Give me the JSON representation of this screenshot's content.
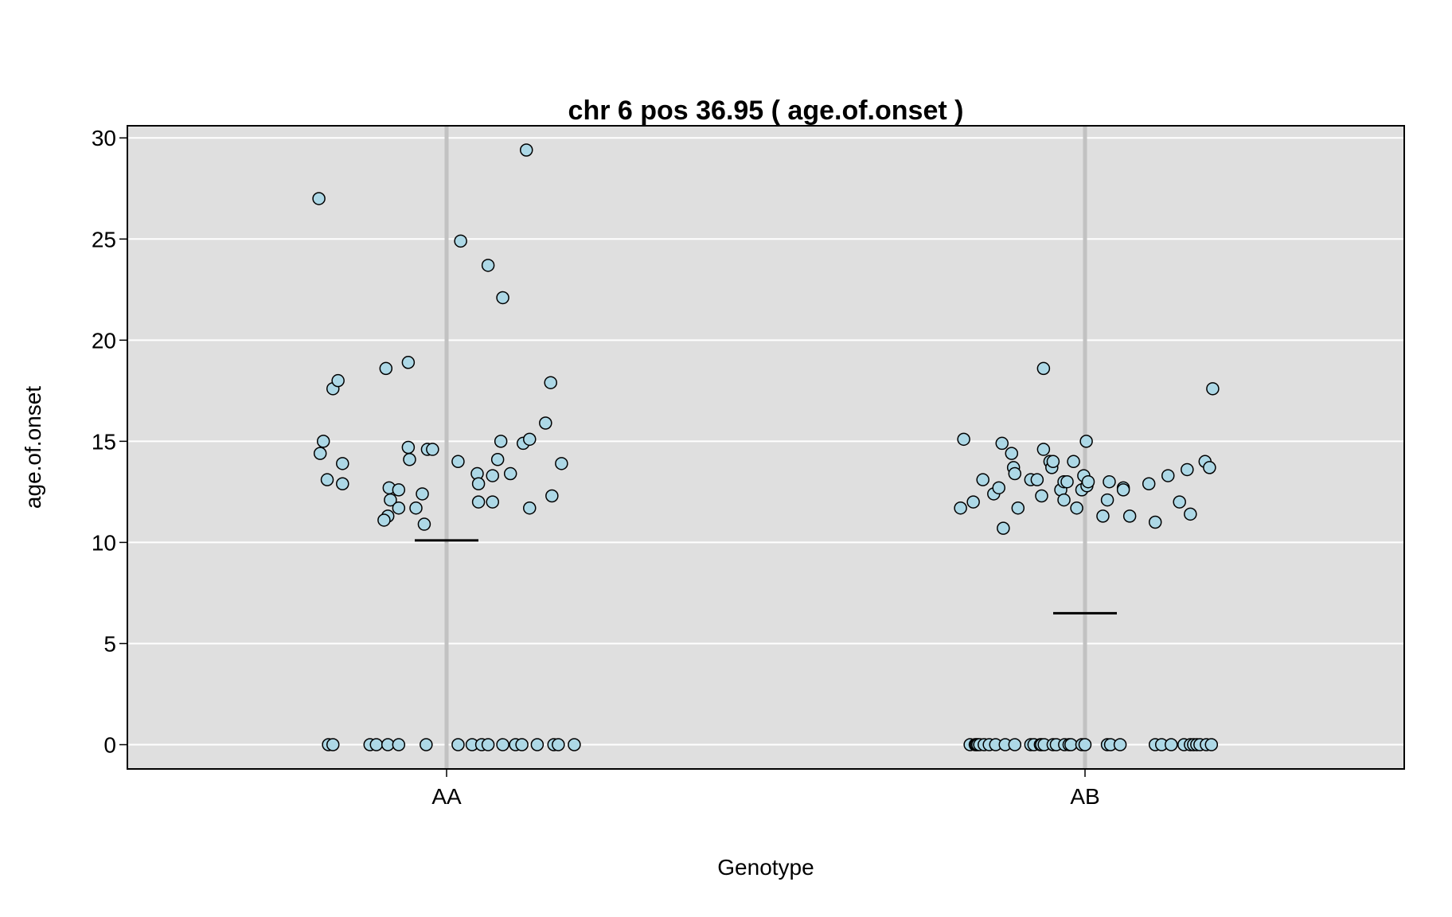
{
  "chart_data": {
    "type": "scatter",
    "title": "chr 6 pos 36.95 ( age.of.onset )",
    "xlabel": "Genotype",
    "ylabel": "age.of.onset",
    "categories": [
      "AA",
      "AB"
    ],
    "ylim": [
      -1.2,
      30.6
    ],
    "yticks": [
      0,
      5,
      10,
      15,
      20,
      25,
      30
    ],
    "grid": true,
    "legend": "none",
    "colors": {
      "panel": "#dfdfdf",
      "gridline": "#ffffff",
      "category_line": "#c2c2c2",
      "point_fill": "#add8e6",
      "point_stroke": "#000000",
      "mean_line": "#000000"
    },
    "series": [
      {
        "category": "AA",
        "mean": 10.1,
        "points": [
          [
            -0.2,
            27.0
          ],
          [
            -0.193,
            15.0
          ],
          [
            -0.198,
            14.4
          ],
          [
            -0.187,
            13.1
          ],
          [
            -0.178,
            17.6
          ],
          [
            -0.17,
            18.0
          ],
          [
            -0.163,
            13.9
          ],
          [
            -0.163,
            12.9
          ],
          [
            -0.095,
            18.6
          ],
          [
            -0.06,
            18.9
          ],
          [
            -0.06,
            14.7
          ],
          [
            -0.058,
            14.1
          ],
          [
            -0.09,
            12.7
          ],
          [
            -0.075,
            12.6
          ],
          [
            -0.088,
            12.1
          ],
          [
            -0.038,
            12.4
          ],
          [
            -0.048,
            11.7
          ],
          [
            -0.075,
            11.7
          ],
          [
            -0.092,
            11.3
          ],
          [
            -0.098,
            11.1
          ],
          [
            -0.035,
            10.9
          ],
          [
            -0.03,
            14.6
          ],
          [
            -0.022,
            14.6
          ],
          [
            0.022,
            24.9
          ],
          [
            0.065,
            23.7
          ],
          [
            0.088,
            22.1
          ],
          [
            0.125,
            29.4
          ],
          [
            0.018,
            14.0
          ],
          [
            0.048,
            13.4
          ],
          [
            0.05,
            12.9
          ],
          [
            0.05,
            12.0
          ],
          [
            0.072,
            12.0
          ],
          [
            0.072,
            13.3
          ],
          [
            0.08,
            14.1
          ],
          [
            0.085,
            15.0
          ],
          [
            0.1,
            13.4
          ],
          [
            0.12,
            14.9
          ],
          [
            0.13,
            15.1
          ],
          [
            0.13,
            11.7
          ],
          [
            0.155,
            15.9
          ],
          [
            0.163,
            17.9
          ],
          [
            0.165,
            12.3
          ],
          [
            0.18,
            13.9
          ],
          [
            -0.185,
            0
          ],
          [
            -0.178,
            0
          ],
          [
            -0.12,
            0
          ],
          [
            -0.11,
            0
          ],
          [
            -0.092,
            0
          ],
          [
            -0.075,
            0
          ],
          [
            -0.032,
            0
          ],
          [
            0.018,
            0
          ],
          [
            0.04,
            0
          ],
          [
            0.055,
            0
          ],
          [
            0.065,
            0
          ],
          [
            0.088,
            0
          ],
          [
            0.108,
            0
          ],
          [
            0.118,
            0
          ],
          [
            0.142,
            0
          ],
          [
            0.168,
            0
          ],
          [
            0.175,
            0
          ],
          [
            0.2,
            0
          ]
        ]
      },
      {
        "category": "AB",
        "mean": 6.5,
        "points": [
          [
            -0.195,
            11.7
          ],
          [
            -0.19,
            15.1
          ],
          [
            -0.175,
            12.0
          ],
          [
            -0.16,
            13.1
          ],
          [
            -0.143,
            12.4
          ],
          [
            -0.135,
            12.7
          ],
          [
            -0.13,
            14.9
          ],
          [
            -0.128,
            10.7
          ],
          [
            -0.115,
            14.4
          ],
          [
            -0.112,
            13.7
          ],
          [
            -0.11,
            13.4
          ],
          [
            -0.105,
            11.7
          ],
          [
            -0.085,
            13.1
          ],
          [
            -0.075,
            13.1
          ],
          [
            -0.068,
            12.3
          ],
          [
            -0.065,
            18.6
          ],
          [
            -0.065,
            14.6
          ],
          [
            -0.055,
            14.0
          ],
          [
            -0.052,
            13.7
          ],
          [
            -0.05,
            14.0
          ],
          [
            -0.038,
            12.6
          ],
          [
            -0.033,
            12.1
          ],
          [
            -0.033,
            13.0
          ],
          [
            -0.028,
            13.0
          ],
          [
            -0.018,
            14.0
          ],
          [
            -0.013,
            11.7
          ],
          [
            -0.005,
            12.6
          ],
          [
            -0.002,
            13.3
          ],
          [
            0.002,
            15.0
          ],
          [
            0.003,
            12.8
          ],
          [
            0.005,
            13.0
          ],
          [
            0.028,
            11.3
          ],
          [
            0.035,
            12.1
          ],
          [
            0.038,
            13.0
          ],
          [
            0.06,
            12.7
          ],
          [
            0.06,
            12.6
          ],
          [
            0.07,
            11.3
          ],
          [
            0.1,
            12.9
          ],
          [
            0.11,
            11.0
          ],
          [
            0.13,
            13.3
          ],
          [
            0.148,
            12.0
          ],
          [
            0.16,
            13.6
          ],
          [
            0.165,
            11.4
          ],
          [
            0.188,
            14.0
          ],
          [
            0.195,
            13.7
          ],
          [
            0.2,
            17.6
          ],
          [
            -0.18,
            0
          ],
          [
            -0.172,
            0
          ],
          [
            -0.17,
            0
          ],
          [
            -0.168,
            0
          ],
          [
            -0.165,
            0
          ],
          [
            -0.158,
            0
          ],
          [
            -0.15,
            0
          ],
          [
            -0.14,
            0
          ],
          [
            -0.125,
            0
          ],
          [
            -0.11,
            0
          ],
          [
            -0.085,
            0
          ],
          [
            -0.08,
            0
          ],
          [
            -0.07,
            0
          ],
          [
            -0.068,
            0
          ],
          [
            -0.064,
            0
          ],
          [
            -0.05,
            0
          ],
          [
            -0.045,
            0
          ],
          [
            -0.032,
            0
          ],
          [
            -0.025,
            0
          ],
          [
            -0.022,
            0
          ],
          [
            -0.005,
            0
          ],
          [
            0.0,
            0
          ],
          [
            0.035,
            0
          ],
          [
            0.04,
            0
          ],
          [
            0.055,
            0
          ],
          [
            0.11,
            0
          ],
          [
            0.12,
            0
          ],
          [
            0.135,
            0
          ],
          [
            0.155,
            0
          ],
          [
            0.165,
            0
          ],
          [
            0.17,
            0
          ],
          [
            0.175,
            0
          ],
          [
            0.18,
            0
          ],
          [
            0.19,
            0
          ],
          [
            0.198,
            0
          ]
        ]
      }
    ]
  }
}
